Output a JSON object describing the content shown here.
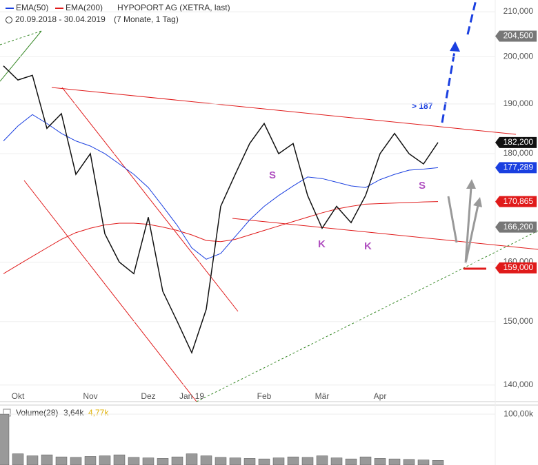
{
  "chart_data": {
    "type": "line",
    "log_scale": true,
    "title": "HYPOPORT AG (XETRA, last)",
    "subtitle": "20.09.2018 - 30.04.2019",
    "period": "(7 Monate, 1 Tag)",
    "categories": [
      null,
      "Okt",
      null,
      null,
      null,
      null,
      "Nov",
      null,
      null,
      null,
      "Dez",
      null,
      null,
      "Jan 19",
      null,
      null,
      null,
      null,
      "Feb",
      null,
      null,
      null,
      "Mär",
      null,
      null,
      null,
      "Apr",
      null,
      null,
      null,
      null
    ],
    "price": {
      "color": "#111111",
      "values": [
        198000,
        195000,
        196000,
        185000,
        188000,
        176000,
        180000,
        165000,
        160000,
        158000,
        168000,
        155000,
        150000,
        145000,
        152000,
        170000,
        176000,
        182000,
        186000,
        180000,
        182000,
        172000,
        166000,
        170000,
        167000,
        172000,
        180000,
        184000,
        180000,
        178000,
        182200
      ]
    },
    "series": [
      {
        "name": "EMA(50)",
        "color": "#1a3fe0",
        "values": [
          182500,
          185500,
          187800,
          186000,
          184000,
          182500,
          181500,
          180000,
          178000,
          176000,
          173500,
          170000,
          166500,
          162500,
          160500,
          161500,
          164500,
          167500,
          170000,
          172000,
          173800,
          175500,
          175200,
          174500,
          173800,
          173500,
          175000,
          176000,
          176800,
          177000,
          177289
        ]
      },
      {
        "name": "EMA(200)",
        "color": "#e01a1a",
        "values": [
          158000,
          159500,
          161000,
          162500,
          164000,
          165200,
          166000,
          166600,
          166900,
          166900,
          166700,
          166200,
          165600,
          164800,
          163800,
          163600,
          164000,
          164800,
          165600,
          166400,
          167200,
          168000,
          168800,
          169500,
          170000,
          170400,
          170500,
          170600,
          170700,
          170800,
          170865
        ]
      }
    ],
    "ylim": [
      137500,
      212700
    ],
    "yticks": [
      {
        "value": 140000,
        "label": "140,000"
      },
      {
        "value": 150000,
        "label": "150,000"
      },
      {
        "value": 160000,
        "label": "160,000"
      },
      {
        "value": 180000,
        "label": "180,000"
      },
      {
        "value": 190000,
        "label": "190,000"
      },
      {
        "value": 200000,
        "label": "200,000"
      },
      {
        "value": 210000,
        "label": "210,000"
      }
    ],
    "price_flags": [
      {
        "value": 204500,
        "label": "204,500",
        "color": "#777777"
      },
      {
        "value": 182200,
        "label": "182,200",
        "color": "#111111"
      },
      {
        "value": 177289,
        "label": "177,289",
        "color": "#1a3fe0"
      },
      {
        "value": 170865,
        "label": "170,865",
        "color": "#e01a1a"
      },
      {
        "value": 166200,
        "label": "166,200",
        "color": "#777777"
      },
      {
        "value": 159000,
        "label": "159,000",
        "color": "#e01a1a"
      }
    ],
    "annotations": [
      "> 187",
      "S",
      "S",
      "K",
      "K"
    ],
    "volume": {
      "label": "Volume(28)",
      "stats": [
        "3,64k",
        "4,77k"
      ],
      "color": "#999999",
      "values": [
        100,
        22,
        18,
        20,
        16,
        15,
        17,
        18,
        20,
        15,
        14,
        13,
        16,
        22,
        18,
        15,
        14,
        13,
        12,
        14,
        16,
        15,
        18,
        14,
        12,
        16,
        13,
        12,
        11,
        10,
        9
      ],
      "ylim": [
        0,
        115
      ],
      "yticks": [
        {
          "value": 100,
          "label": "100,00k"
        }
      ]
    }
  }
}
